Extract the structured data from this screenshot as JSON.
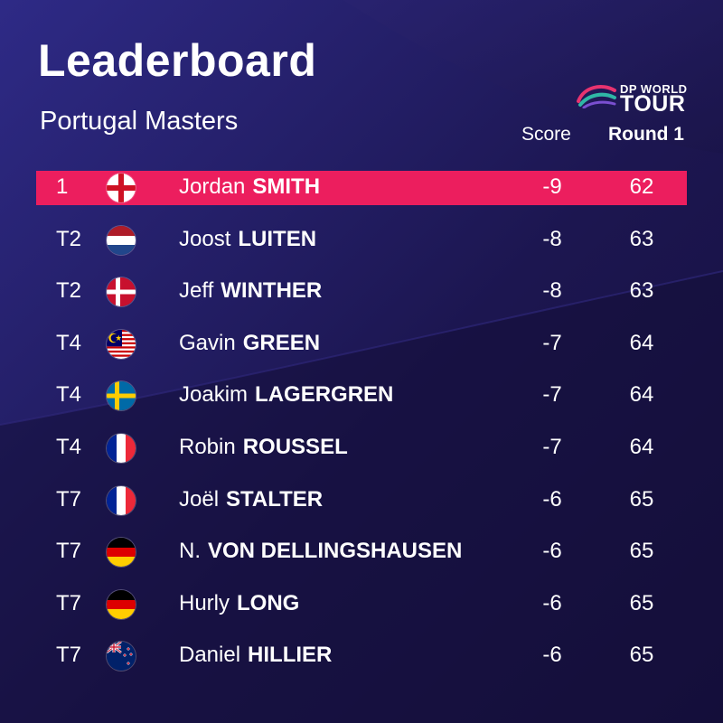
{
  "header": {
    "title": "Leaderboard",
    "subtitle": "Portugal Masters",
    "col_score": "Score",
    "col_round": "Round 1"
  },
  "logo": {
    "line1": "DP WORLD",
    "line2": "TOUR",
    "icon": "dp-world-tour-logo-icon"
  },
  "colors": {
    "background": "#1d1750",
    "background_dark": "#120f3c",
    "background_light": "#2b2680",
    "leader_highlight": "#ec1e5e",
    "text": "#ffffff"
  },
  "rows": [
    {
      "pos": "1",
      "flag": "england",
      "first": "Jordan",
      "last": "SMITH",
      "score": "-9",
      "round": "62",
      "highlight": true
    },
    {
      "pos": "T2",
      "flag": "netherlands",
      "first": "Joost",
      "last": "LUITEN",
      "score": "-8",
      "round": "63"
    },
    {
      "pos": "T2",
      "flag": "denmark",
      "first": "Jeff",
      "last": "WINTHER",
      "score": "-8",
      "round": "63"
    },
    {
      "pos": "T4",
      "flag": "malaysia",
      "first": "Gavin",
      "last": "GREEN",
      "score": "-7",
      "round": "64"
    },
    {
      "pos": "T4",
      "flag": "sweden",
      "first": "Joakim",
      "last": "LAGERGREN",
      "score": "-7",
      "round": "64"
    },
    {
      "pos": "T4",
      "flag": "france",
      "first": "Robin",
      "last": "ROUSSEL",
      "score": "-7",
      "round": "64"
    },
    {
      "pos": "T7",
      "flag": "france",
      "first": "Joël",
      "last": "STALTER",
      "score": "-6",
      "round": "65"
    },
    {
      "pos": "T7",
      "flag": "germany",
      "first": "N.",
      "last": "VON DELLINGSHAUSEN",
      "score": "-6",
      "round": "65"
    },
    {
      "pos": "T7",
      "flag": "germany",
      "first": "Hurly",
      "last": "LONG",
      "score": "-6",
      "round": "65"
    },
    {
      "pos": "T7",
      "flag": "new-zealand",
      "first": "Daniel",
      "last": "HILLIER",
      "score": "-6",
      "round": "65"
    }
  ]
}
